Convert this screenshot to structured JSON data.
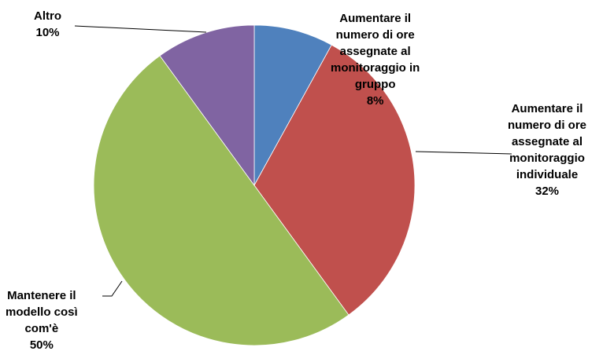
{
  "chart_data": {
    "type": "pie",
    "slices": [
      {
        "label": [
          "Aumentare il",
          "numero di ore",
          "assegnate al",
          "monitoraggio in",
          "gruppo"
        ],
        "value": 8,
        "percent_label": "8%",
        "color": "#4F81BD"
      },
      {
        "label": [
          "Aumentare il",
          "numero di ore",
          "assegnate al",
          "monitoraggio",
          "individuale"
        ],
        "value": 32,
        "percent_label": "32%",
        "color": "#C0504D"
      },
      {
        "label": [
          "Mantenere il",
          "modello così",
          "com'è"
        ],
        "value": 50,
        "percent_label": "50%",
        "color": "#9BBB59"
      },
      {
        "label": [
          "Altro"
        ],
        "value": 10,
        "percent_label": "10%",
        "color": "#8064A2"
      }
    ],
    "start_angle_deg": 0,
    "direction": "clockwise"
  }
}
